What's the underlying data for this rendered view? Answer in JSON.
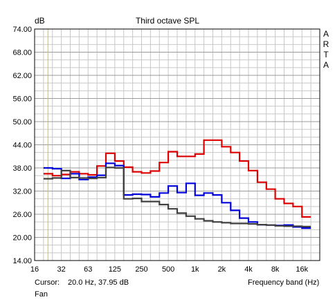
{
  "chart_data": {
    "type": "line",
    "step": true,
    "title": "Third octave SPL",
    "ylabel": "dB",
    "xlabel": "Frequency band (Hz)",
    "ylim": [
      14.0,
      74.0
    ],
    "yticks": [
      "14.00",
      "20.00",
      "26.00",
      "32.00",
      "38.00",
      "44.00",
      "50.00",
      "56.00",
      "62.00",
      "68.00",
      "74.00"
    ],
    "xticks": [
      "16",
      "32",
      "63",
      "125",
      "250",
      "500",
      "1k",
      "2k",
      "4k",
      "8k",
      "16k"
    ],
    "bands": [
      "16",
      "20",
      "25",
      "31.5",
      "40",
      "50",
      "63",
      "80",
      "100",
      "125",
      "160",
      "200",
      "250",
      "315",
      "400",
      "500",
      "630",
      "800",
      "1k",
      "1.25k",
      "1.6k",
      "2k",
      "2.5k",
      "3.15k",
      "4k",
      "5k",
      "6.3k",
      "8k",
      "10k",
      "12.5k",
      "16k",
      "20k"
    ],
    "cursor_band": "20",
    "grid": true,
    "series": [
      {
        "color": "#dd0000",
        "values": [
          null,
          36.5,
          36.0,
          36.3,
          37.0,
          36.5,
          36.2,
          38.5,
          41.8,
          39.8,
          38.2,
          37.0,
          36.7,
          37.2,
          39.4,
          42.2,
          41.0,
          41.0,
          41.6,
          45.2,
          45.2,
          43.5,
          42.0,
          39.8,
          37.3,
          34.3,
          32.5,
          30.0,
          28.8,
          28.0,
          25.3,
          null
        ]
      },
      {
        "color": "#0000dd",
        "values": [
          null,
          38.0,
          37.8,
          35.3,
          36.5,
          35.0,
          35.6,
          36.1,
          39.2,
          38.6,
          31.0,
          31.2,
          31.1,
          30.5,
          31.5,
          33.3,
          31.6,
          34.0,
          30.9,
          31.5,
          31.0,
          29.0,
          27.0,
          25.0,
          24.0,
          23.3,
          23.2,
          23.1,
          23.2,
          22.7,
          22.4,
          null
        ]
      },
      {
        "color": "#404040",
        "values": [
          null,
          35.2,
          35.4,
          37.3,
          35.5,
          35.4,
          35.3,
          35.5,
          38.1,
          38.0,
          30.0,
          30.1,
          29.3,
          29.3,
          28.5,
          27.4,
          26.3,
          25.5,
          24.8,
          24.3,
          24.0,
          23.8,
          23.6,
          23.6,
          23.5,
          23.3,
          23.2,
          23.0,
          22.9,
          22.9,
          22.8,
          null
        ]
      }
    ]
  },
  "cursor": {
    "label": "Cursor:",
    "value": "20.0 Hz, 37.95 dB"
  },
  "footer": {
    "mode": "Fan"
  },
  "brand": [
    "A",
    "R",
    "T",
    "A"
  ]
}
